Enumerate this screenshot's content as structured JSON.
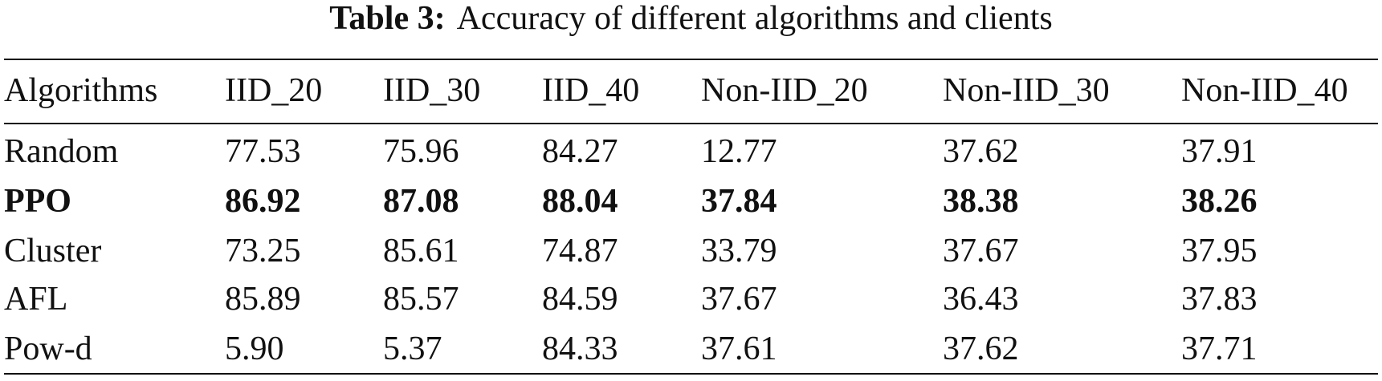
{
  "caption": {
    "label": "Table 3:",
    "text": "Accuracy of different algorithms and clients"
  },
  "table": {
    "header": [
      "Algorithms",
      "IID_20",
      "IID_30",
      "IID_40",
      "Non-IID_20",
      "Non-IID_30",
      "Non-IID_40"
    ],
    "rows": [
      [
        "Random",
        "77.53",
        "75.96",
        "84.27",
        "12.77",
        "37.62",
        "37.91"
      ],
      [
        "PPO",
        "86.92",
        "87.08",
        "88.04",
        "37.84",
        "38.38",
        "38.26"
      ],
      [
        "Cluster",
        "73.25",
        "85.61",
        "74.87",
        "33.79",
        "37.67",
        "37.95"
      ],
      [
        "AFL",
        "85.89",
        "85.57",
        "84.59",
        "37.67",
        "36.43",
        "37.83"
      ],
      [
        "Pow-d",
        "5.90",
        "5.37",
        "84.33",
        "37.61",
        "37.62",
        "37.71"
      ]
    ]
  }
}
